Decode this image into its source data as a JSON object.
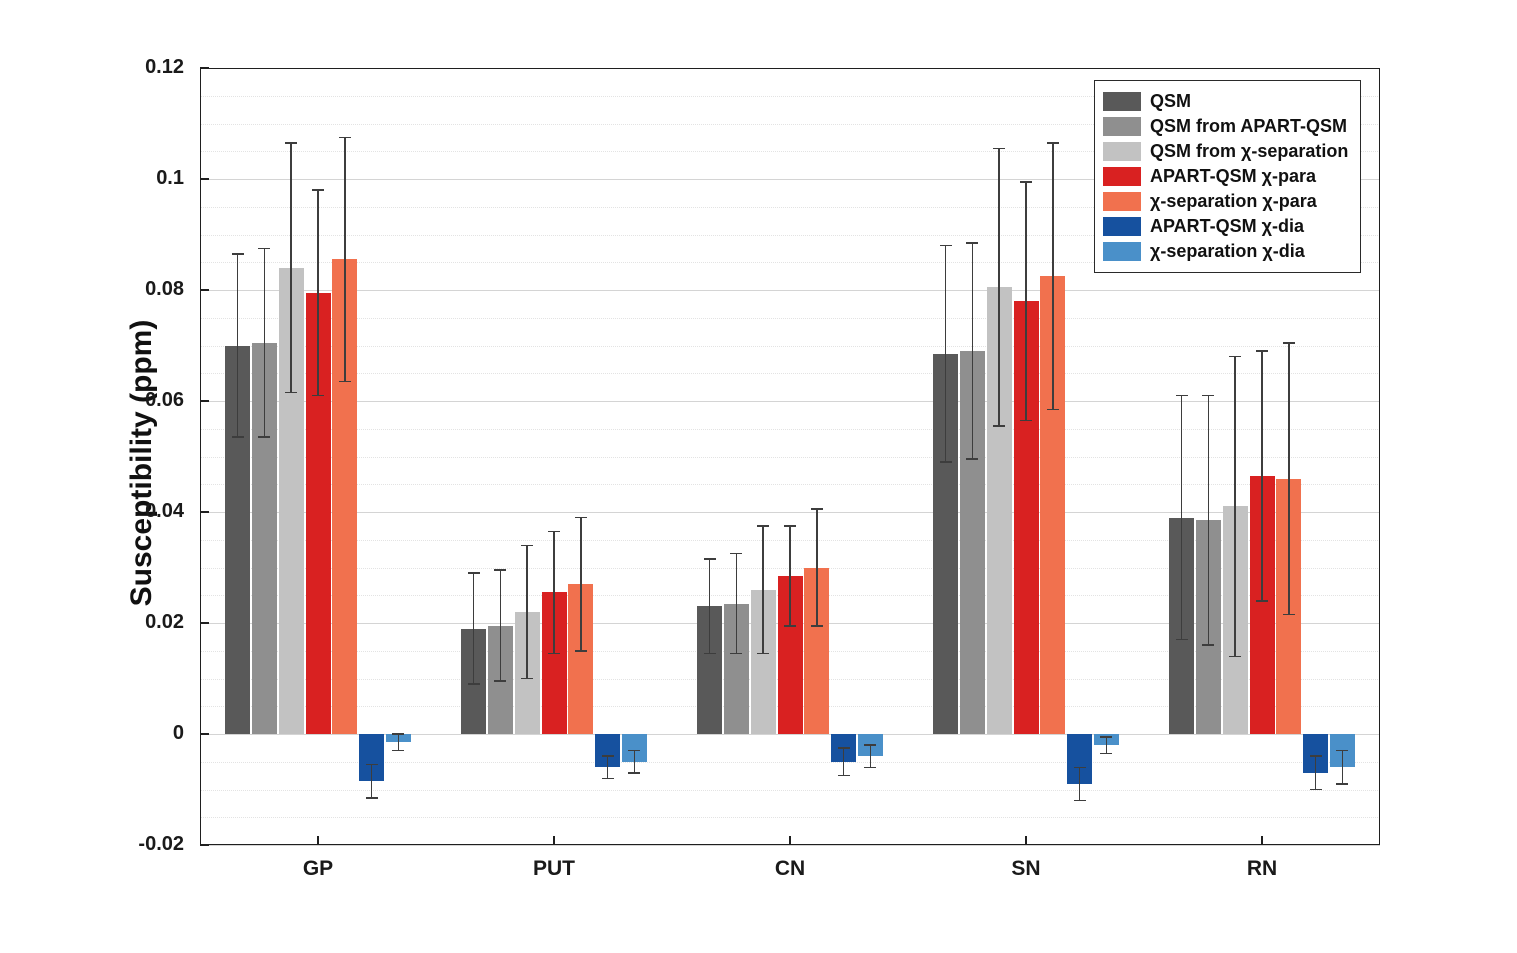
{
  "chart_data": {
    "type": "bar",
    "title": "",
    "xlabel": "",
    "ylabel": "Susceptibility (ppm)",
    "ylim": [
      -0.02,
      0.12
    ],
    "yticks": [
      -0.02,
      0,
      0.02,
      0.04,
      0.06,
      0.08,
      0.1,
      0.12
    ],
    "ytick_labels": [
      "-0.02",
      "0",
      "0.02",
      "0.04",
      "0.06",
      "0.08",
      "0.1",
      "0.12"
    ],
    "minor_grid_step": 0.005,
    "grid": true,
    "legend_position": "top-right",
    "error_bar_color": "#3d3d3d",
    "categories": [
      "GP",
      "PUT",
      "CN",
      "SN",
      "RN"
    ],
    "series": [
      {
        "name": "QSM",
        "color": "#595959",
        "values": [
          0.07,
          0.019,
          0.023,
          0.0685,
          0.039
        ],
        "errors": [
          0.0165,
          0.01,
          0.0085,
          0.0195,
          0.022
        ]
      },
      {
        "name": "QSM from APART-QSM",
        "color": "#8f8f8f",
        "values": [
          0.0705,
          0.0195,
          0.0235,
          0.069,
          0.0385
        ],
        "errors": [
          0.017,
          0.01,
          0.009,
          0.0195,
          0.0225
        ]
      },
      {
        "name": "QSM from χ-separation",
        "color": "#c2c2c2",
        "values": [
          0.084,
          0.022,
          0.026,
          0.0805,
          0.041
        ],
        "errors": [
          0.0225,
          0.012,
          0.0115,
          0.025,
          0.027
        ]
      },
      {
        "name": "APART-QSM χ-para",
        "color": "#d92121",
        "values": [
          0.0795,
          0.0255,
          0.0285,
          0.078,
          0.0465
        ],
        "errors": [
          0.0185,
          0.011,
          0.009,
          0.0215,
          0.0225
        ]
      },
      {
        "name": "χ-separation χ-para",
        "color": "#f1714e",
        "values": [
          0.0855,
          0.027,
          0.03,
          0.0825,
          0.046
        ],
        "errors": [
          0.022,
          0.012,
          0.0105,
          0.024,
          0.0245
        ]
      },
      {
        "name": "APART-QSM χ-dia",
        "color": "#16519f",
        "values": [
          -0.0085,
          -0.006,
          -0.005,
          -0.009,
          -0.007
        ],
        "errors": [
          0.003,
          0.002,
          0.0025,
          0.003,
          0.003
        ]
      },
      {
        "name": "χ-separation χ-dia",
        "color": "#4a90c9",
        "values": [
          -0.0015,
          -0.005,
          -0.004,
          -0.002,
          -0.006
        ],
        "errors": [
          0.0015,
          0.002,
          0.002,
          0.0015,
          0.003
        ]
      }
    ]
  }
}
